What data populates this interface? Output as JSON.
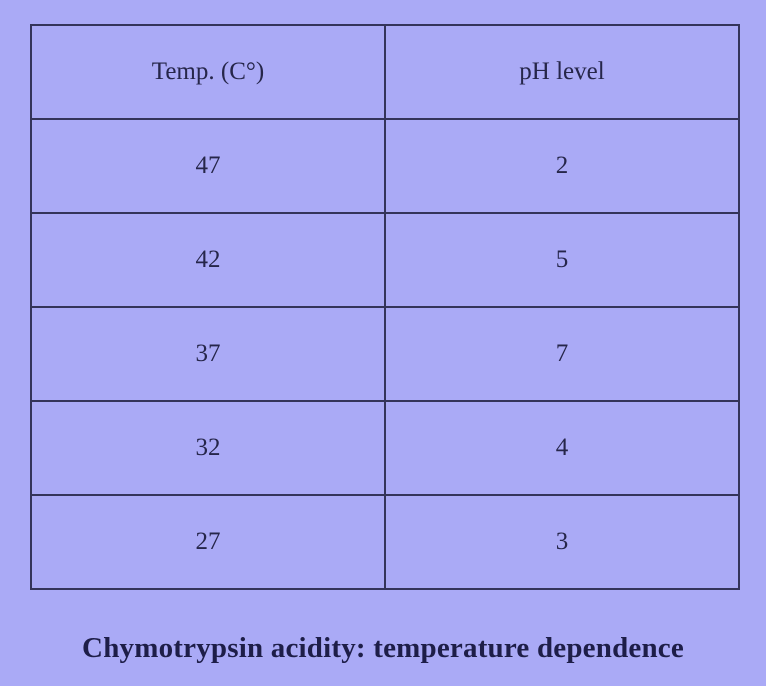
{
  "table": {
    "header": [
      "Temp. (C°)",
      "pH level"
    ],
    "rows": [
      [
        47,
        2
      ],
      [
        42,
        5
      ],
      [
        37,
        7
      ],
      [
        32,
        4
      ],
      [
        27,
        3
      ]
    ]
  },
  "caption": "Chymotrypsin acidity: temperature dependence"
}
